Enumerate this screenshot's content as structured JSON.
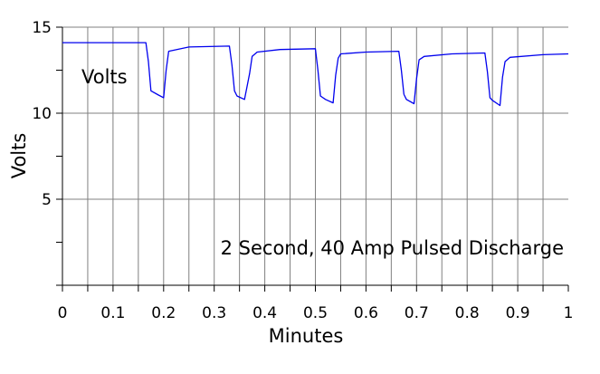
{
  "chart_data": {
    "type": "line",
    "title": "",
    "xlabel": "Minutes",
    "ylabel": "Volts",
    "xlim": [
      0,
      1
    ],
    "ylim": [
      0,
      15
    ],
    "x_ticks": [
      "0",
      "0.1",
      "0.2",
      "0.3",
      "0.4",
      "0.5",
      "0.6",
      "0.7",
      "0.8",
      "0.9",
      "1"
    ],
    "y_ticks": [
      "5",
      "10",
      "15"
    ],
    "grid": true,
    "annotations": {
      "series_label": "Volts",
      "description": "2 Second, 40 Amp Pulsed Discharge"
    },
    "colors": {
      "line": "#0000ee",
      "grid": "#808080",
      "axis": "#000000"
    },
    "series": [
      {
        "name": "Volts",
        "x": [
          0,
          0.165,
          0.17,
          0.175,
          0.19,
          0.2,
          0.205,
          0.21,
          0.25,
          0.33,
          0.335,
          0.34,
          0.345,
          0.36,
          0.37,
          0.375,
          0.385,
          0.43,
          0.5,
          0.505,
          0.51,
          0.52,
          0.535,
          0.54,
          0.545,
          0.55,
          0.6,
          0.665,
          0.67,
          0.675,
          0.68,
          0.695,
          0.7,
          0.705,
          0.715,
          0.77,
          0.835,
          0.84,
          0.845,
          0.85,
          0.865,
          0.87,
          0.875,
          0.885,
          0.95,
          1.0
        ],
        "y": [
          14.1,
          14.1,
          13.0,
          11.3,
          11.05,
          10.9,
          12.5,
          13.6,
          13.85,
          13.9,
          12.8,
          11.3,
          11.0,
          10.8,
          12.3,
          13.3,
          13.55,
          13.7,
          13.75,
          12.5,
          11.0,
          10.8,
          10.6,
          12.2,
          13.2,
          13.45,
          13.55,
          13.6,
          12.5,
          11.1,
          10.8,
          10.55,
          12.0,
          13.1,
          13.3,
          13.45,
          13.5,
          12.4,
          10.9,
          10.75,
          10.45,
          12.1,
          13.0,
          13.25,
          13.4,
          13.45
        ]
      }
    ]
  }
}
